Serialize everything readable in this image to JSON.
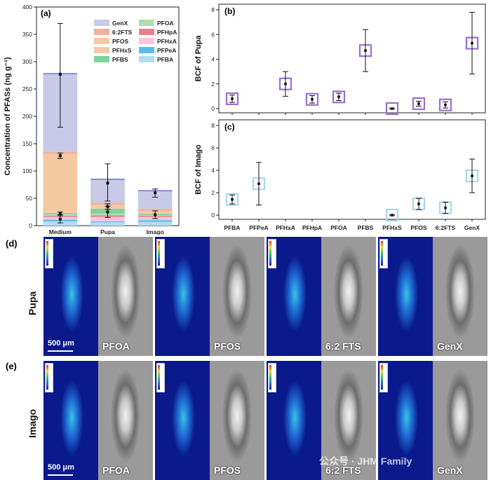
{
  "panels": {
    "a": "(a)",
    "b": "(b)",
    "c": "(c)",
    "d": "(d)",
    "e": "(e)"
  },
  "chart_data": [
    {
      "id": "a",
      "type": "bar",
      "stacked": true,
      "ylabel": "Concentration of PFASs (ng g⁻¹)",
      "ylim": [
        0,
        400
      ],
      "yticks": [
        0,
        50,
        100,
        150,
        200,
        250,
        300,
        350,
        400
      ],
      "categories": [
        "Medium",
        "Pupa",
        "Imago"
      ],
      "series": [
        {
          "name": "PFBA",
          "color": "#b3dcf5",
          "values": [
            8,
            6,
            7
          ]
        },
        {
          "name": "PFPeA",
          "color": "#5bbde9",
          "values": [
            3,
            2,
            3
          ]
        },
        {
          "name": "PFHxA",
          "color": "#f3c7dc",
          "values": [
            5,
            8,
            6
          ]
        },
        {
          "name": "PFHpA",
          "color": "#e7828d",
          "values": [
            2,
            3,
            2
          ]
        },
        {
          "name": "PFOA",
          "color": "#b2dcb0",
          "values": [
            3,
            3,
            2
          ]
        },
        {
          "name": "PFBS",
          "color": "#7dd39a",
          "values": [
            2,
            9,
            2
          ]
        },
        {
          "name": "PFHxS",
          "color": "#f4c9a8",
          "values": [
            3,
            3,
            2
          ]
        },
        {
          "name": "PFOS",
          "color": "#f4c9a0",
          "values": [
            105,
            4,
            3
          ]
        },
        {
          "name": "6:2FTS",
          "color": "#f0b29a",
          "values": [
            4,
            4,
            4
          ]
        },
        {
          "name": "GenX",
          "color": "#c8cae8",
          "values": [
            143,
            43,
            33
          ]
        }
      ],
      "error_bars": [
        {
          "category": "Medium",
          "points": [
            {
              "y": 277,
              "lo": 180,
              "hi": 370
            },
            {
              "y": 128,
              "lo": 123,
              "hi": 133
            },
            {
              "y": 22,
              "lo": 18,
              "hi": 25
            },
            {
              "y": 12,
              "lo": 5,
              "hi": 20
            }
          ]
        },
        {
          "category": "Pupa",
          "points": [
            {
              "y": 78,
              "lo": 45,
              "hi": 113
            },
            {
              "y": 35,
              "lo": 30,
              "hi": 40
            },
            {
              "y": 25,
              "lo": 15,
              "hi": 35
            }
          ]
        },
        {
          "category": "Imago",
          "points": [
            {
              "y": 60,
              "lo": 52,
              "hi": 67
            },
            {
              "y": 20,
              "lo": 13,
              "hi": 27
            }
          ]
        }
      ],
      "legend": [
        "GenX",
        "PFOA",
        "6:2FTS",
        "PFHpA",
        "PFOS",
        "PFHxA",
        "PFHxS",
        "PFPeA",
        "PFBS",
        "PFBA"
      ]
    },
    {
      "id": "b",
      "type": "scatter",
      "ylabel": "BCF of Pupa",
      "ylim": [
        0,
        8
      ],
      "yticks": [
        0,
        2,
        4,
        6,
        8
      ],
      "marker_color": "#9b6fd0",
      "categories": [
        "PFBA",
        "PFPeA",
        "PFHxA",
        "PFHpA",
        "PFOA",
        "PFBS",
        "PFHxS",
        "PFOS",
        "6:2FTS",
        "GenX"
      ],
      "points": [
        {
          "x": "PFBA",
          "y": 0.8,
          "err": 0.3
        },
        {
          "x": "PFHxA",
          "y": 2.0,
          "err": 1.0
        },
        {
          "x": "PFHpA",
          "y": 0.75,
          "err": 0.3
        },
        {
          "x": "PFOA",
          "y": 0.95,
          "err": 0.3
        },
        {
          "x": "PFBS",
          "y": 4.7,
          "err": 1.7
        },
        {
          "x": "PFHxS",
          "y": 0.0,
          "err": 0.05
        },
        {
          "x": "PFOS",
          "y": 0.4,
          "err": 0.2
        },
        {
          "x": "6:2FTS",
          "y": 0.3,
          "err": 0.25
        },
        {
          "x": "GenX",
          "y": 5.3,
          "err": 2.5
        }
      ]
    },
    {
      "id": "c",
      "type": "scatter",
      "ylabel": "BCF of Imago",
      "ylim": [
        0,
        8
      ],
      "yticks": [
        0,
        2,
        4,
        6,
        8
      ],
      "marker_color": "#a8d8f0",
      "categories": [
        "PFBA",
        "PFPeA",
        "PFHxA",
        "PFHpA",
        "PFOA",
        "PFBS",
        "PFHxS",
        "PFOS",
        "6:2FTS",
        "GenX"
      ],
      "points": [
        {
          "x": "PFBA",
          "y": 1.4,
          "err": 0.4
        },
        {
          "x": "PFPeA",
          "y": 2.8,
          "err": 1.9
        },
        {
          "x": "PFHxS",
          "y": 0.0,
          "err": 0.05
        },
        {
          "x": "PFOS",
          "y": 1.0,
          "err": 0.5
        },
        {
          "x": "6:2FTS",
          "y": 0.65,
          "err": 0.5
        },
        {
          "x": "GenX",
          "y": 3.5,
          "err": 1.5
        }
      ]
    }
  ],
  "micrographs": {
    "rows": [
      {
        "label": "Pupa",
        "scale_text": "500 μm",
        "labels": [
          "PFOA",
          "PFOS",
          "6:2 FTS",
          "GenX"
        ]
      },
      {
        "label": "Imago",
        "scale_text": "500 μm",
        "labels": [
          "PFOA",
          "PFOS",
          "6:2 FTS",
          "GenX"
        ]
      }
    ],
    "watermark": "公众号 · JHM Family",
    "colors": {
      "map_bg": "#0a1a8c",
      "map_signal": "#38c6e0",
      "sem_bg": "#9a9a9a"
    }
  }
}
